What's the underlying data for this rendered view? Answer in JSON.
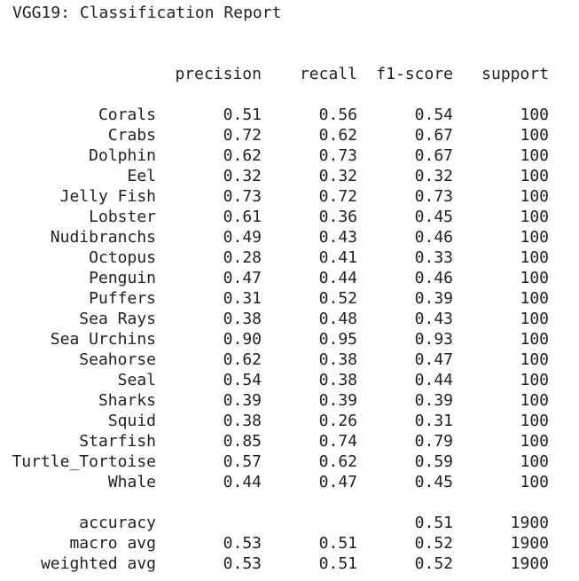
{
  "title": "VGG19: Classification Report",
  "headers": {
    "precision": "precision",
    "recall": "recall",
    "f1": "f1-score",
    "support": "support"
  },
  "classes": [
    {
      "label": "Corals",
      "precision": "0.51",
      "recall": "0.56",
      "f1": "0.54",
      "support": "100"
    },
    {
      "label": "Crabs",
      "precision": "0.72",
      "recall": "0.62",
      "f1": "0.67",
      "support": "100"
    },
    {
      "label": "Dolphin",
      "precision": "0.62",
      "recall": "0.73",
      "f1": "0.67",
      "support": "100"
    },
    {
      "label": "Eel",
      "precision": "0.32",
      "recall": "0.32",
      "f1": "0.32",
      "support": "100"
    },
    {
      "label": "Jelly Fish",
      "precision": "0.73",
      "recall": "0.72",
      "f1": "0.73",
      "support": "100"
    },
    {
      "label": "Lobster",
      "precision": "0.61",
      "recall": "0.36",
      "f1": "0.45",
      "support": "100"
    },
    {
      "label": "Nudibranchs",
      "precision": "0.49",
      "recall": "0.43",
      "f1": "0.46",
      "support": "100"
    },
    {
      "label": "Octopus",
      "precision": "0.28",
      "recall": "0.41",
      "f1": "0.33",
      "support": "100"
    },
    {
      "label": "Penguin",
      "precision": "0.47",
      "recall": "0.44",
      "f1": "0.46",
      "support": "100"
    },
    {
      "label": "Puffers",
      "precision": "0.31",
      "recall": "0.52",
      "f1": "0.39",
      "support": "100"
    },
    {
      "label": "Sea Rays",
      "precision": "0.38",
      "recall": "0.48",
      "f1": "0.43",
      "support": "100"
    },
    {
      "label": "Sea Urchins",
      "precision": "0.90",
      "recall": "0.95",
      "f1": "0.93",
      "support": "100"
    },
    {
      "label": "Seahorse",
      "precision": "0.62",
      "recall": "0.38",
      "f1": "0.47",
      "support": "100"
    },
    {
      "label": "Seal",
      "precision": "0.54",
      "recall": "0.38",
      "f1": "0.44",
      "support": "100"
    },
    {
      "label": "Sharks",
      "precision": "0.39",
      "recall": "0.39",
      "f1": "0.39",
      "support": "100"
    },
    {
      "label": "Squid",
      "precision": "0.38",
      "recall": "0.26",
      "f1": "0.31",
      "support": "100"
    },
    {
      "label": "Starfish",
      "precision": "0.85",
      "recall": "0.74",
      "f1": "0.79",
      "support": "100"
    },
    {
      "label": "Turtle_Tortoise",
      "precision": "0.57",
      "recall": "0.62",
      "f1": "0.59",
      "support": "100"
    },
    {
      "label": "Whale",
      "precision": "0.44",
      "recall": "0.47",
      "f1": "0.45",
      "support": "100"
    }
  ],
  "summary": [
    {
      "label": "accuracy",
      "precision": "",
      "recall": "",
      "f1": "0.51",
      "support": "1900"
    },
    {
      "label": "macro avg",
      "precision": "0.53",
      "recall": "0.51",
      "f1": "0.52",
      "support": "1900"
    },
    {
      "label": "weighted avg",
      "precision": "0.53",
      "recall": "0.51",
      "f1": "0.52",
      "support": "1900"
    }
  ]
}
